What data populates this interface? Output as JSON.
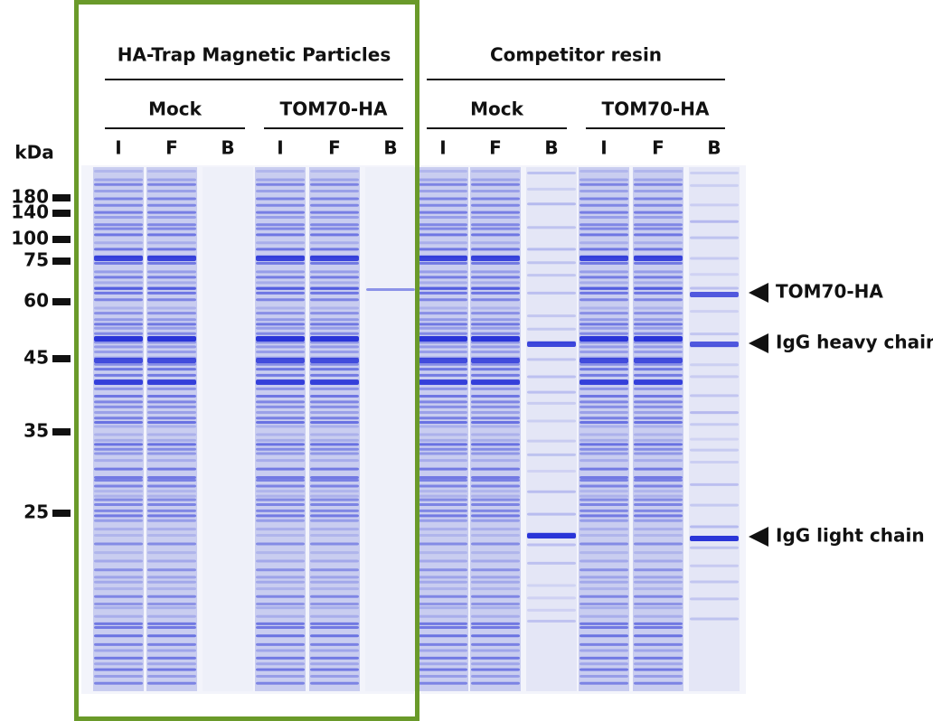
{
  "groups": [
    {
      "title": "HA-Trap Magnetic Particles",
      "subgroups": [
        {
          "label": "Mock",
          "lanes": [
            "I",
            "F",
            "B"
          ]
        },
        {
          "label": "TOM70-HA",
          "lanes": [
            "I",
            "F",
            "B"
          ]
        }
      ]
    },
    {
      "title": "Competitor resin",
      "subgroups": [
        {
          "label": "Mock",
          "lanes": [
            "I",
            "F",
            "B"
          ]
        },
        {
          "label": "TOM70-HA",
          "lanes": [
            "I",
            "F",
            "B"
          ]
        }
      ]
    }
  ],
  "marker": {
    "unit": "kDa",
    "labels": [
      "180",
      "140",
      "100",
      "75",
      "60",
      "45",
      "35",
      "25"
    ]
  },
  "annotations": [
    "TOM70-HA",
    "IgG heavy chain",
    "IgG light chain"
  ]
}
